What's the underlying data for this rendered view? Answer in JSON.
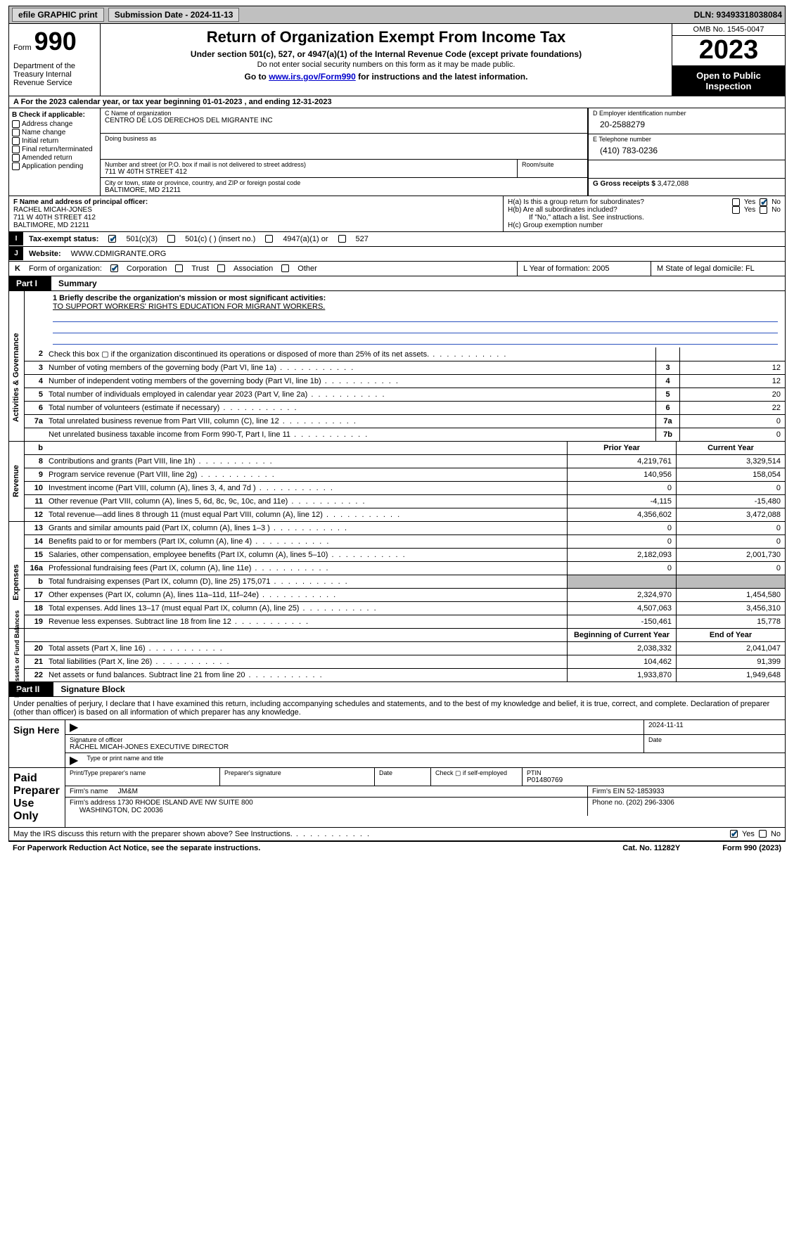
{
  "topbar": {
    "efile": "efile GRAPHIC print",
    "submission": "Submission Date - 2024-11-13",
    "dln": "DLN: 93493318038084"
  },
  "header": {
    "form_label": "Form",
    "form_no": "990",
    "dept": "Department of the Treasury Internal Revenue Service",
    "title": "Return of Organization Exempt From Income Tax",
    "sub1": "Under section 501(c), 527, or 4947(a)(1) of the Internal Revenue Code (except private foundations)",
    "sub2": "Do not enter social security numbers on this form as it may be made public.",
    "goto_pre": "Go to ",
    "goto_link": "www.irs.gov/Form990",
    "goto_post": " for instructions and the latest information.",
    "omb": "OMB No. 1545-0047",
    "year": "2023",
    "inspection": "Open to Public Inspection"
  },
  "row_a": "A For the 2023 calendar year, or tax year beginning 01-01-2023   , and ending 12-31-2023",
  "box_b": {
    "label": "B Check if applicable:",
    "opts": [
      "Address change",
      "Name change",
      "Initial return",
      "Final return/terminated",
      "Amended return",
      "Application pending"
    ]
  },
  "box_c": {
    "name_label": "C Name of organization",
    "name": "CENTRO DE LOS DERECHOS DEL MIGRANTE INC",
    "dba_label": "Doing business as",
    "addr_label": "Number and street (or P.O. box if mail is not delivered to street address)",
    "room_label": "Room/suite",
    "addr": "711 W 40TH STREET 412",
    "city_label": "City or town, state or province, country, and ZIP or foreign postal code",
    "city": "BALTIMORE, MD  21211"
  },
  "box_d": {
    "label": "D Employer identification number",
    "value": "20-2588279"
  },
  "box_e": {
    "label": "E Telephone number",
    "value": "(410) 783-0236"
  },
  "box_g": {
    "label": "G Gross receipts $",
    "value": "3,472,088"
  },
  "box_f": {
    "label": "F  Name and address of principal officer:",
    "name": "RACHEL MICAH-JONES",
    "addr1": "711 W 40TH STREET 412",
    "addr2": "BALTIMORE, MD  21211"
  },
  "box_h": {
    "ha": "H(a)  Is this a group return for subordinates?",
    "hb": "H(b)  Are all subordinates included?",
    "hb_note": "If \"No,\" attach a list. See instructions.",
    "hc": "H(c)  Group exemption number",
    "yes": "Yes",
    "no": "No"
  },
  "tax_status": {
    "label_i": "I",
    "label": "Tax-exempt status:",
    "o1": "501(c)(3)",
    "o2": "501(c) (  ) (insert no.)",
    "o3": "4947(a)(1) or",
    "o4": "527"
  },
  "website": {
    "label_j": "J",
    "label": "Website:",
    "value": "WWW.CDMIGRANTE.ORG"
  },
  "k_org": {
    "label_k": "K",
    "label": "Form of organization:",
    "opts": [
      "Corporation",
      "Trust",
      "Association",
      "Other"
    ],
    "l": "L Year of formation: 2005",
    "m": "M State of legal domicile: FL"
  },
  "part1": {
    "num": "Part I",
    "title": "Summary"
  },
  "mission": {
    "label": "1  Briefly describe the organization's mission or most significant activities:",
    "text": "TO SUPPORT WORKERS' RIGHTS EDUCATION FOR MIGRANT WORKERS."
  },
  "gov_lines": [
    {
      "n": "2",
      "d": "Check this box ▢  if the organization discontinued its operations or disposed of more than 25% of its net assets.",
      "ref": "",
      "v": ""
    },
    {
      "n": "3",
      "d": "Number of voting members of the governing body (Part VI, line 1a)",
      "ref": "3",
      "v": "12"
    },
    {
      "n": "4",
      "d": "Number of independent voting members of the governing body (Part VI, line 1b)",
      "ref": "4",
      "v": "12"
    },
    {
      "n": "5",
      "d": "Total number of individuals employed in calendar year 2023 (Part V, line 2a)",
      "ref": "5",
      "v": "20"
    },
    {
      "n": "6",
      "d": "Total number of volunteers (estimate if necessary)",
      "ref": "6",
      "v": "22"
    },
    {
      "n": "7a",
      "d": "Total unrelated business revenue from Part VIII, column (C), line 12",
      "ref": "7a",
      "v": "0"
    },
    {
      "n": "",
      "d": "Net unrelated business taxable income from Form 990-T, Part I, line 11",
      "ref": "7b",
      "v": "0"
    }
  ],
  "rev_hdr": {
    "b": "b",
    "prior": "Prior Year",
    "curr": "Current Year"
  },
  "vlabels": {
    "gov": "Activities & Governance",
    "rev": "Revenue",
    "exp": "Expenses",
    "net": "Net Assets or Fund Balances"
  },
  "rev": [
    {
      "n": "8",
      "d": "Contributions and grants (Part VIII, line 1h)",
      "p": "4,219,761",
      "c": "3,329,514"
    },
    {
      "n": "9",
      "d": "Program service revenue (Part VIII, line 2g)",
      "p": "140,956",
      "c": "158,054"
    },
    {
      "n": "10",
      "d": "Investment income (Part VIII, column (A), lines 3, 4, and 7d )",
      "p": "0",
      "c": "0"
    },
    {
      "n": "11",
      "d": "Other revenue (Part VIII, column (A), lines 5, 6d, 8c, 9c, 10c, and 11e)",
      "p": "-4,115",
      "c": "-15,480"
    },
    {
      "n": "12",
      "d": "Total revenue—add lines 8 through 11 (must equal Part VIII, column (A), line 12)",
      "p": "4,356,602",
      "c": "3,472,088"
    }
  ],
  "exp": [
    {
      "n": "13",
      "d": "Grants and similar amounts paid (Part IX, column (A), lines 1–3 )",
      "p": "0",
      "c": "0"
    },
    {
      "n": "14",
      "d": "Benefits paid to or for members (Part IX, column (A), line 4)",
      "p": "0",
      "c": "0"
    },
    {
      "n": "15",
      "d": "Salaries, other compensation, employee benefits (Part IX, column (A), lines 5–10)",
      "p": "2,182,093",
      "c": "2,001,730"
    },
    {
      "n": "16a",
      "d": "Professional fundraising fees (Part IX, column (A), line 11e)",
      "p": "0",
      "c": "0"
    },
    {
      "n": "b",
      "d": "Total fundraising expenses (Part IX, column (D), line 25) 175,071",
      "p": "",
      "c": "",
      "grey": true
    },
    {
      "n": "17",
      "d": "Other expenses (Part IX, column (A), lines 11a–11d, 11f–24e)",
      "p": "2,324,970",
      "c": "1,454,580"
    },
    {
      "n": "18",
      "d": "Total expenses. Add lines 13–17 (must equal Part IX, column (A), line 25)",
      "p": "4,507,063",
      "c": "3,456,310"
    },
    {
      "n": "19",
      "d": "Revenue less expenses. Subtract line 18 from line 12",
      "p": "-150,461",
      "c": "15,778"
    }
  ],
  "net_hdr": {
    "prior": "Beginning of Current Year",
    "curr": "End of Year"
  },
  "net": [
    {
      "n": "20",
      "d": "Total assets (Part X, line 16)",
      "p": "2,038,332",
      "c": "2,041,047"
    },
    {
      "n": "21",
      "d": "Total liabilities (Part X, line 26)",
      "p": "104,462",
      "c": "91,399"
    },
    {
      "n": "22",
      "d": "Net assets or fund balances. Subtract line 21 from line 20",
      "p": "1,933,870",
      "c": "1,949,648"
    }
  ],
  "part2": {
    "num": "Part II",
    "title": "Signature Block"
  },
  "perjury": "Under penalties of perjury, I declare that I have examined this return, including accompanying schedules and statements, and to the best of my knowledge and belief, it is true, correct, and complete. Declaration of preparer (other than officer) is based on all information of which preparer has any knowledge.",
  "sign": {
    "here": "Sign Here",
    "date": "2024-11-11",
    "sig_label": "Signature of officer",
    "date_label": "Date",
    "officer": "RACHEL MICAH-JONES  EXECUTIVE DIRECTOR",
    "type_label": "Type or print name and title"
  },
  "paid": {
    "label": "Paid Preparer Use Only",
    "h1": "Print/Type preparer's name",
    "h2": "Preparer's signature",
    "h3": "Date",
    "chk": "Check ▢ if self-employed",
    "ptin_l": "PTIN",
    "ptin": "P01480769",
    "firm_l": "Firm's name",
    "firm": "JM&M",
    "ein_l": "Firm's EIN",
    "ein": "52-1853933",
    "addr_l": "Firm's address",
    "addr": "1730 RHODE ISLAND AVE NW SUITE 800",
    "addr2": "WASHINGTON, DC  20036",
    "phone_l": "Phone no.",
    "phone": "(202) 296-3306"
  },
  "discuss": "May the IRS discuss this return with the preparer shown above? See Instructions.",
  "footer": {
    "l": "For Paperwork Reduction Act Notice, see the separate instructions.",
    "m": "Cat. No. 11282Y",
    "r": "Form 990 (2023)"
  }
}
